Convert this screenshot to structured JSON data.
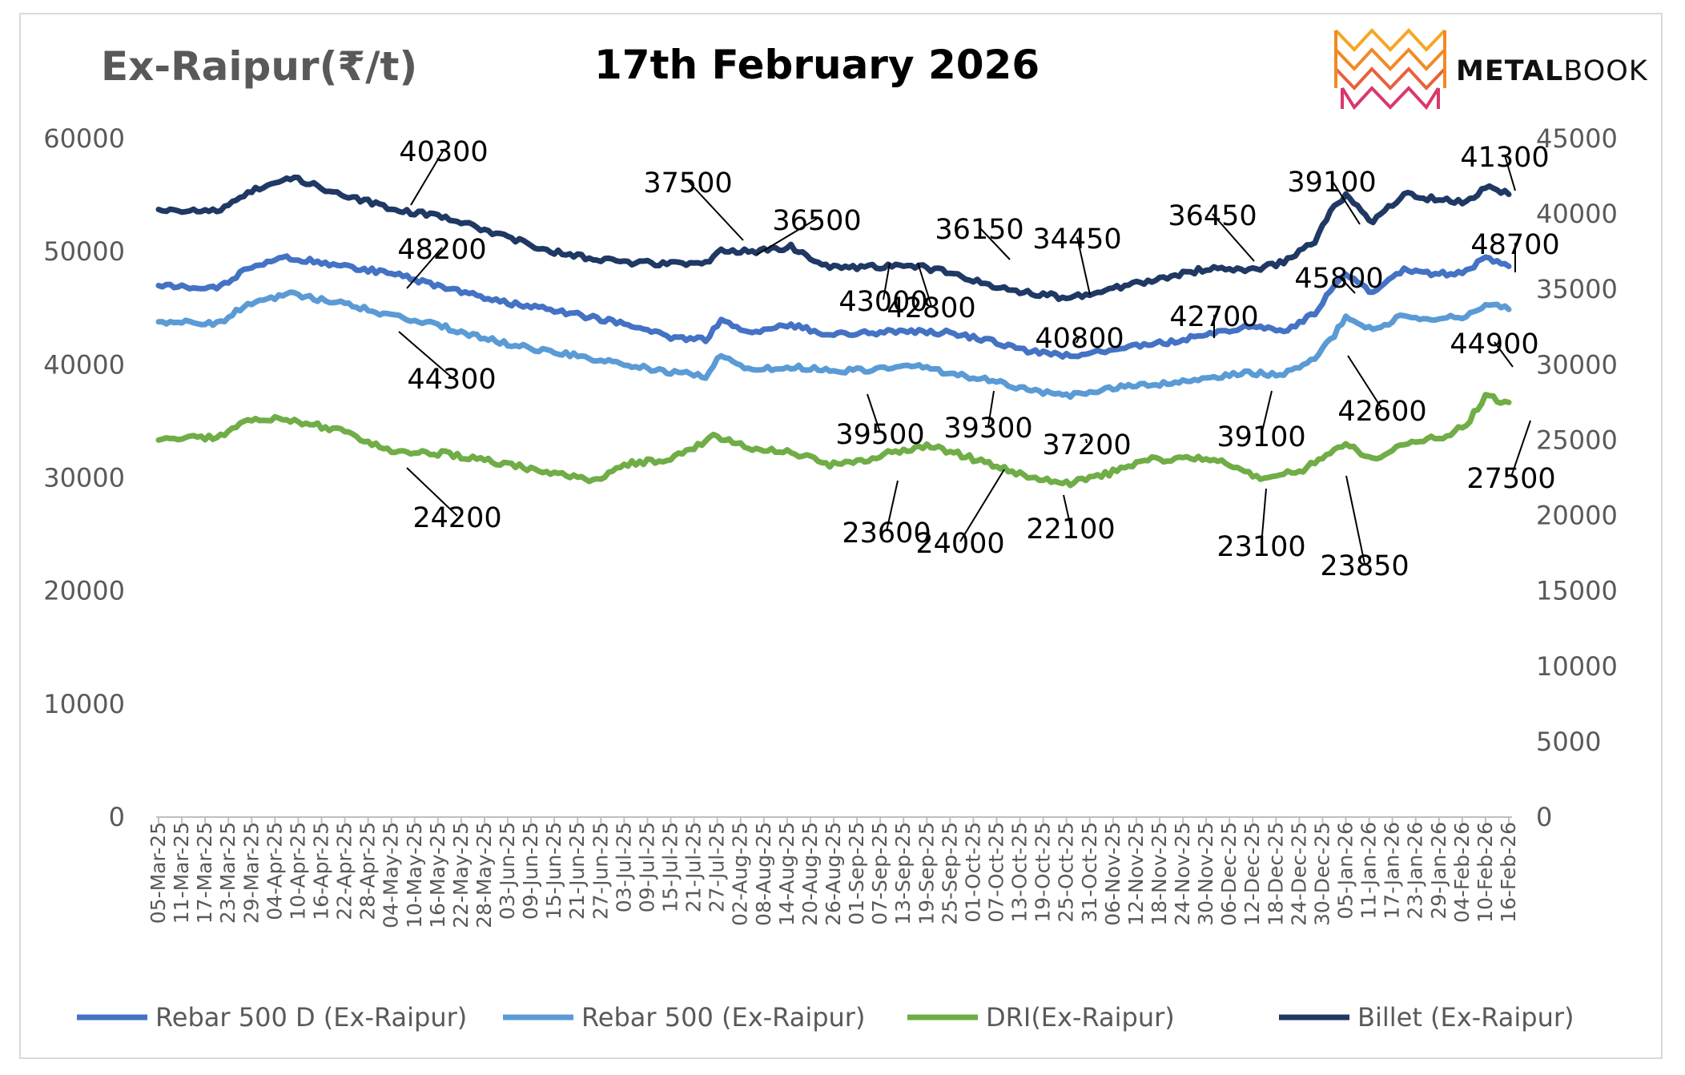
{
  "brand": {
    "name_bold": "METAL",
    "name_light": "BOOK"
  },
  "chart_data": {
    "type": "line",
    "title": "17th February 2026",
    "ylabel": "Ex-Raipur(₹/t)",
    "ylim": [
      0,
      60000
    ],
    "ylim_right": [
      0,
      45000
    ],
    "yticks": [
      0,
      10000,
      20000,
      30000,
      40000,
      50000,
      60000
    ],
    "yticks_right": [
      0,
      5000,
      10000,
      15000,
      20000,
      25000,
      30000,
      35000,
      40000,
      45000
    ],
    "x_range": [
      "2025-03-05",
      "2026-02-16"
    ],
    "x_tick_labels": [
      "05-Mar-25",
      "11-Mar-25",
      "17-Mar-25",
      "23-Mar-25",
      "29-Mar-25",
      "04-Apr-25",
      "10-Apr-25",
      "16-Apr-25",
      "22-Apr-25",
      "28-Apr-25",
      "04-May-25",
      "10-May-25",
      "16-May-25",
      "22-May-25",
      "28-May-25",
      "03-Jun-25",
      "09-Jun-25",
      "15-Jun-25",
      "21-Jun-25",
      "27-Jun-25",
      "03-Jul-25",
      "09-Jul-25",
      "15-Jul-25",
      "21-Jul-25",
      "27-Jul-25",
      "02-Aug-25",
      "08-Aug-25",
      "14-Aug-25",
      "20-Aug-25",
      "26-Aug-25",
      "01-Sep-25",
      "07-Sep-25",
      "13-Sep-25",
      "19-Sep-25",
      "25-Sep-25",
      "01-Oct-25",
      "07-Oct-25",
      "13-Oct-25",
      "19-Oct-25",
      "25-Oct-25",
      "31-Oct-25",
      "06-Nov-25",
      "12-Nov-25",
      "18-Nov-25",
      "24-Nov-25",
      "30-Nov-25",
      "06-Dec-25",
      "12-Dec-25",
      "18-Dec-25",
      "24-Dec-25",
      "30-Dec-25",
      "05-Jan-26",
      "11-Jan-26",
      "17-Jan-26",
      "23-Jan-26",
      "29-Jan-26",
      "04-Feb-26",
      "10-Feb-26",
      "16-Feb-26"
    ],
    "legend_position": "bottom",
    "grid": false,
    "series": [
      {
        "name": "Rebar 500 D (Ex-Raipur)",
        "axis": "left",
        "color": "#4472c4",
        "points": [
          [
            "2025-03-05",
            47000
          ],
          [
            "2025-03-20",
            46700
          ],
          [
            "2025-03-28",
            48500
          ],
          [
            "2025-04-07",
            49500
          ],
          [
            "2025-04-20",
            48800
          ],
          [
            "2025-05-05",
            48000
          ],
          [
            "2025-05-18",
            46800
          ],
          [
            "2025-06-01",
            45600
          ],
          [
            "2025-06-15",
            44800
          ],
          [
            "2025-07-01",
            43800
          ],
          [
            "2025-07-14",
            42500
          ],
          [
            "2025-07-24",
            42200
          ],
          [
            "2025-07-28",
            43800
          ],
          [
            "2025-08-04",
            42900
          ],
          [
            "2025-08-15",
            43500
          ],
          [
            "2025-08-25",
            42700
          ],
          [
            "2025-09-05",
            42800
          ],
          [
            "2025-09-15",
            43000
          ],
          [
            "2025-09-25",
            42800
          ],
          [
            "2025-10-05",
            42200
          ],
          [
            "2025-10-15",
            41200
          ],
          [
            "2025-10-25",
            40800
          ],
          [
            "2025-11-05",
            41300
          ],
          [
            "2025-11-20",
            42000
          ],
          [
            "2025-12-01",
            42700
          ],
          [
            "2025-12-10",
            43400
          ],
          [
            "2025-12-20",
            43000
          ],
          [
            "2025-12-28",
            44500
          ],
          [
            "2026-01-02",
            47000
          ],
          [
            "2026-01-05",
            48000
          ],
          [
            "2026-01-12",
            46300
          ],
          [
            "2026-01-20",
            48400
          ],
          [
            "2026-01-28",
            48000
          ],
          [
            "2026-02-05",
            48200
          ],
          [
            "2026-02-10",
            49500
          ],
          [
            "2026-02-16",
            48700
          ]
        ]
      },
      {
        "name": "Rebar 500 (Ex-Raipur)",
        "axis": "left",
        "color": "#5b9bd5",
        "points": [
          [
            "2025-03-05",
            43800
          ],
          [
            "2025-03-20",
            43600
          ],
          [
            "2025-03-28",
            45300
          ],
          [
            "2025-04-07",
            46300
          ],
          [
            "2025-04-20",
            45500
          ],
          [
            "2025-05-05",
            44300
          ],
          [
            "2025-05-18",
            43300
          ],
          [
            "2025-06-01",
            42000
          ],
          [
            "2025-06-15",
            41100
          ],
          [
            "2025-07-01",
            40200
          ],
          [
            "2025-07-14",
            39400
          ],
          [
            "2025-07-24",
            39000
          ],
          [
            "2025-07-28",
            41000
          ],
          [
            "2025-08-04",
            39500
          ],
          [
            "2025-08-15",
            39800
          ],
          [
            "2025-08-25",
            39500
          ],
          [
            "2025-09-05",
            39500
          ],
          [
            "2025-09-15",
            39900
          ],
          [
            "2025-09-25",
            39300
          ],
          [
            "2025-10-05",
            38600
          ],
          [
            "2025-10-15",
            37800
          ],
          [
            "2025-10-25",
            37200
          ],
          [
            "2025-11-05",
            37900
          ],
          [
            "2025-11-20",
            38400
          ],
          [
            "2025-12-01",
            38900
          ],
          [
            "2025-12-10",
            39300
          ],
          [
            "2025-12-20",
            39100
          ],
          [
            "2025-12-28",
            40600
          ],
          [
            "2026-01-02",
            42600
          ],
          [
            "2026-01-05",
            44300
          ],
          [
            "2026-01-12",
            43000
          ],
          [
            "2026-01-20",
            44400
          ],
          [
            "2026-01-28",
            44000
          ],
          [
            "2026-02-05",
            44300
          ],
          [
            "2026-02-10",
            45400
          ],
          [
            "2026-02-16",
            44900
          ]
        ]
      },
      {
        "name": "DRI(Ex-Raipur)",
        "axis": "right",
        "color": "#70ad47",
        "points": [
          [
            "2025-03-05",
            25000
          ],
          [
            "2025-03-20",
            25200
          ],
          [
            "2025-03-28",
            26300
          ],
          [
            "2025-04-07",
            26400
          ],
          [
            "2025-04-20",
            25700
          ],
          [
            "2025-05-05",
            24200
          ],
          [
            "2025-05-18",
            24100
          ],
          [
            "2025-06-01",
            23500
          ],
          [
            "2025-06-15",
            22800
          ],
          [
            "2025-06-25",
            22300
          ],
          [
            "2025-07-05",
            23500
          ],
          [
            "2025-07-15",
            23700
          ],
          [
            "2025-07-26",
            25200
          ],
          [
            "2025-08-05",
            24500
          ],
          [
            "2025-08-15",
            24200
          ],
          [
            "2025-08-25",
            23400
          ],
          [
            "2025-09-03",
            23600
          ],
          [
            "2025-09-10",
            24200
          ],
          [
            "2025-09-20",
            24600
          ],
          [
            "2025-09-28",
            24000
          ],
          [
            "2025-10-08",
            23200
          ],
          [
            "2025-10-18",
            22400
          ],
          [
            "2025-10-25",
            22100
          ],
          [
            "2025-11-05",
            22800
          ],
          [
            "2025-11-15",
            23700
          ],
          [
            "2025-12-01",
            23800
          ],
          [
            "2025-12-08",
            23100
          ],
          [
            "2025-12-14",
            22500
          ],
          [
            "2025-12-25",
            23000
          ],
          [
            "2025-12-30",
            23850
          ],
          [
            "2026-01-05",
            24800
          ],
          [
            "2026-01-12",
            23700
          ],
          [
            "2026-01-22",
            25000
          ],
          [
            "2026-01-30",
            25200
          ],
          [
            "2026-02-05",
            26000
          ],
          [
            "2026-02-10",
            27900
          ],
          [
            "2026-02-16",
            27500
          ]
        ]
      },
      {
        "name": "Billet (Ex-Raipur)",
        "axis": "right",
        "color": "#1f3864",
        "points": [
          [
            "2025-03-05",
            40300
          ],
          [
            "2025-03-20",
            40200
          ],
          [
            "2025-03-28",
            41400
          ],
          [
            "2025-04-07",
            42500
          ],
          [
            "2025-04-20",
            41400
          ],
          [
            "2025-05-05",
            40300
          ],
          [
            "2025-05-18",
            39800
          ],
          [
            "2025-06-01",
            38600
          ],
          [
            "2025-06-15",
            37500
          ],
          [
            "2025-07-01",
            36800
          ],
          [
            "2025-07-14",
            36700
          ],
          [
            "2025-07-24",
            36700
          ],
          [
            "2025-07-28",
            37500
          ],
          [
            "2025-08-04",
            37500
          ],
          [
            "2025-08-15",
            37800
          ],
          [
            "2025-08-25",
            36500
          ],
          [
            "2025-09-05",
            36500
          ],
          [
            "2025-09-15",
            36600
          ],
          [
            "2025-09-25",
            36150
          ],
          [
            "2025-10-05",
            35300
          ],
          [
            "2025-10-15",
            34800
          ],
          [
            "2025-10-25",
            34450
          ],
          [
            "2025-11-05",
            35000
          ],
          [
            "2025-11-20",
            35800
          ],
          [
            "2025-12-01",
            36450
          ],
          [
            "2025-12-10",
            36200
          ],
          [
            "2025-12-20",
            36800
          ],
          [
            "2025-12-28",
            38200
          ],
          [
            "2026-01-02",
            40500
          ],
          [
            "2026-01-05",
            41200
          ],
          [
            "2026-01-12",
            39500
          ],
          [
            "2026-01-20",
            41300
          ],
          [
            "2026-01-28",
            41000
          ],
          [
            "2026-02-05",
            40800
          ],
          [
            "2026-02-10",
            41800
          ],
          [
            "2026-02-16",
            41300
          ]
        ]
      }
    ],
    "annotations": [
      {
        "text": "40300"
      },
      {
        "text": "37500"
      },
      {
        "text": "36500"
      },
      {
        "text": "36150"
      },
      {
        "text": "34450"
      },
      {
        "text": "36450"
      },
      {
        "text": "39100"
      },
      {
        "text": "41300"
      },
      {
        "text": "48200"
      },
      {
        "text": "43000"
      },
      {
        "text": "42800"
      },
      {
        "text": "40800"
      },
      {
        "text": "42700"
      },
      {
        "text": "45800"
      },
      {
        "text": "48700"
      },
      {
        "text": "44300"
      },
      {
        "text": "39500"
      },
      {
        "text": "39300"
      },
      {
        "text": "37200"
      },
      {
        "text": "39100"
      },
      {
        "text": "42600"
      },
      {
        "text": "44900"
      },
      {
        "text": "24200"
      },
      {
        "text": "23600"
      },
      {
        "text": "24000"
      },
      {
        "text": "22100"
      },
      {
        "text": "23100"
      },
      {
        "text": "23850"
      },
      {
        "text": "27500"
      }
    ]
  }
}
